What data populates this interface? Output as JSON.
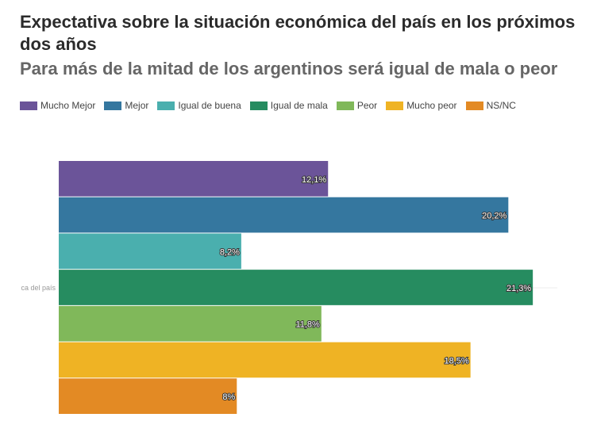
{
  "title": "Expectativa sobre la situación económica del país en los próximos dos años",
  "subtitle": "Para más de la mitad de los argentinos será igual de mala o peor",
  "chart_data": {
    "type": "bar",
    "orientation": "horizontal",
    "categories": [
      "ca del país"
    ],
    "series": [
      {
        "name": "Mucho Mejor",
        "values": [
          12.1
        ],
        "label": "12,1%",
        "color": "#6b5499"
      },
      {
        "name": "Mejor",
        "values": [
          20.2
        ],
        "label": "20,2%",
        "color": "#35779f"
      },
      {
        "name": "Igual de buena",
        "values": [
          8.2
        ],
        "label": "8,2%",
        "color": "#4aafae"
      },
      {
        "name": "Igual de mala",
        "values": [
          21.3
        ],
        "label": "21,3%",
        "color": "#268c60"
      },
      {
        "name": "Peor",
        "values": [
          11.8
        ],
        "label": "11,8%",
        "color": "#80b85a"
      },
      {
        "name": "Mucho peor",
        "values": [
          18.5
        ],
        "label": "18,5%",
        "color": "#efb324"
      },
      {
        "name": "NS/NC",
        "values": [
          8
        ],
        "label": "8%",
        "color": "#e38a24"
      }
    ],
    "xlim": [
      0,
      22.4
    ],
    "grid": false,
    "legend_position": "top-left"
  }
}
